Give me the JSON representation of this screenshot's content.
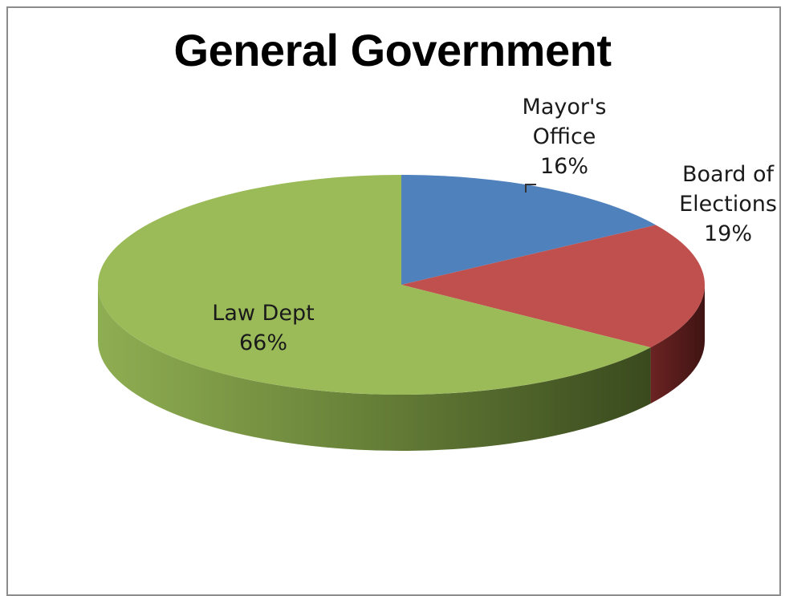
{
  "chart_data": {
    "type": "pie",
    "title": "General Government",
    "slices": [
      {
        "name": "Mayor's Office",
        "label_lines": [
          "Mayor's",
          "Office"
        ],
        "value": 16,
        "value_label": "16%",
        "color": "#4f81bd"
      },
      {
        "name": "Board of Elections",
        "label_lines": [
          "Board of",
          "Elections"
        ],
        "value": 19,
        "value_label": "19%",
        "color": "#c0504d"
      },
      {
        "name": "Law Dept",
        "label_lines": [
          "Law Dept"
        ],
        "value": 66,
        "value_label": "66%",
        "color": "#9bbb59"
      }
    ],
    "style": "3d-pie",
    "start_angle_deg": 0,
    "legend": "none"
  }
}
